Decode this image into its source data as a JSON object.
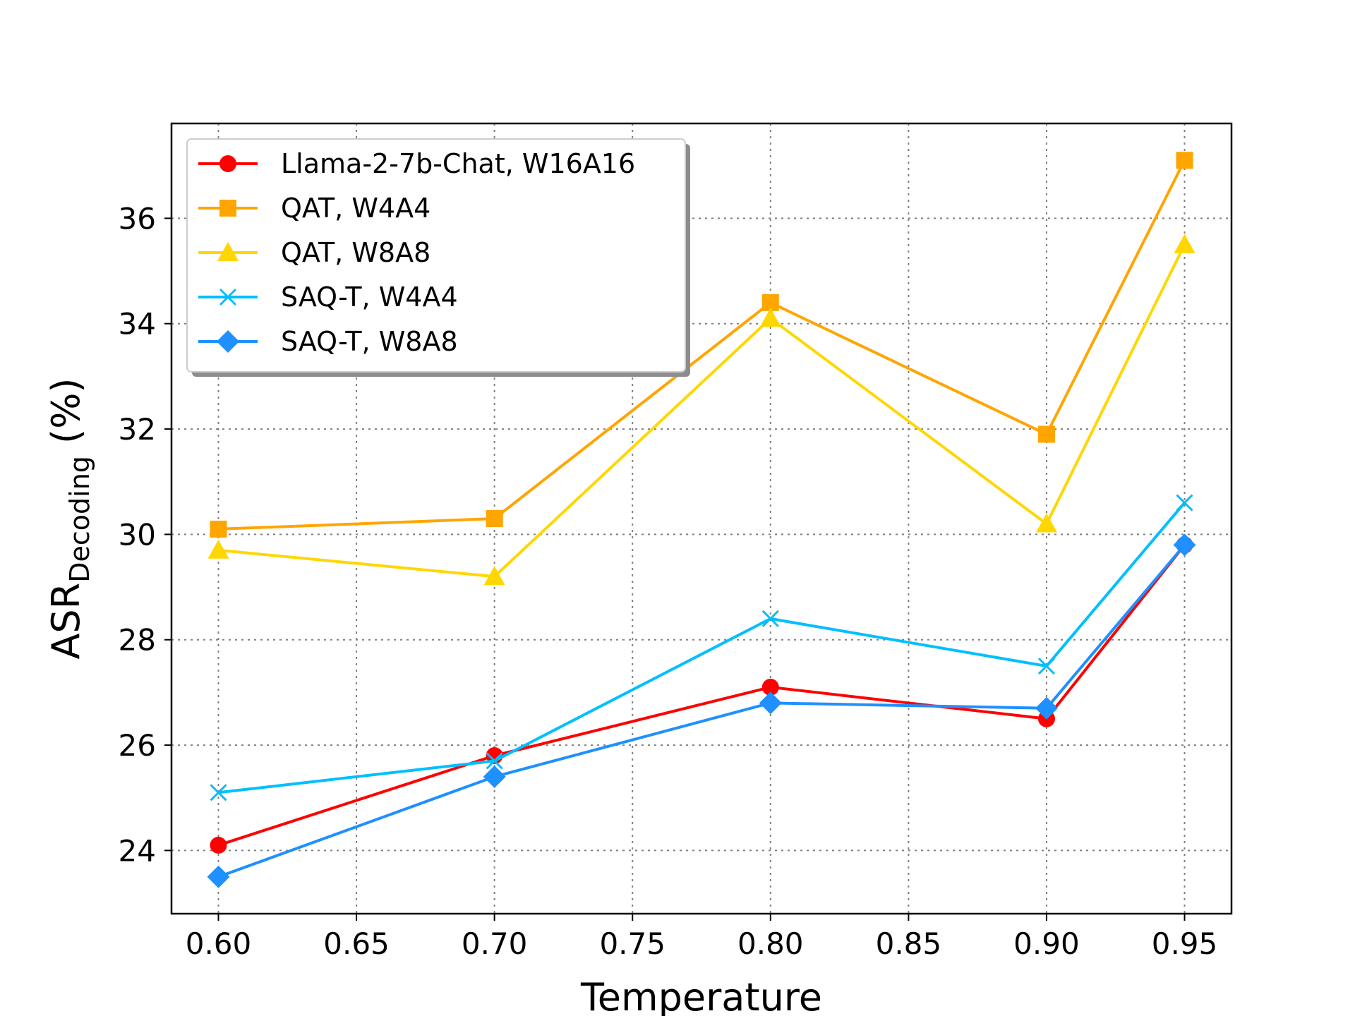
{
  "chart_data": {
    "type": "line",
    "xlabel": "Temperature",
    "ylabel": {
      "main": "ASR",
      "subscript": "Decoding",
      "suffix": " (%)"
    },
    "x": [
      0.6,
      0.7,
      0.8,
      0.9,
      0.95
    ],
    "xlim": [
      0.583,
      0.967
    ],
    "ylim": [
      22.8,
      37.8
    ],
    "xticks": [
      0.6,
      0.65,
      0.7,
      0.75,
      0.8,
      0.85,
      0.9,
      0.95
    ],
    "xtick_labels": [
      "0.60",
      "0.65",
      "0.70",
      "0.75",
      "0.80",
      "0.85",
      "0.90",
      "0.95"
    ],
    "yticks": [
      24,
      26,
      28,
      30,
      32,
      34,
      36
    ],
    "ytick_labels": [
      "24",
      "26",
      "28",
      "30",
      "32",
      "34",
      "36"
    ],
    "grid": true,
    "legend_position": "top-left",
    "series": [
      {
        "name": "Llama-2-7b-Chat, W16A16",
        "color": "#ff0000",
        "marker": "circle",
        "values": [
          24.1,
          25.8,
          27.1,
          26.5,
          29.8
        ]
      },
      {
        "name": "QAT, W4A4",
        "color": "#ffa500",
        "marker": "square",
        "values": [
          30.1,
          30.3,
          34.4,
          31.9,
          37.1
        ]
      },
      {
        "name": "QAT, W8A8",
        "color": "#ffd700",
        "marker": "triangle",
        "values": [
          29.7,
          29.2,
          34.1,
          30.2,
          35.5
        ]
      },
      {
        "name": "SAQ-T, W4A4",
        "color": "#00bfff",
        "marker": "x",
        "values": [
          25.1,
          25.7,
          28.4,
          27.5,
          30.6
        ]
      },
      {
        "name": "SAQ-T, W8A8",
        "color": "#1e90ff",
        "marker": "diamond",
        "values": [
          23.5,
          25.4,
          26.8,
          26.7,
          29.8
        ]
      }
    ]
  }
}
